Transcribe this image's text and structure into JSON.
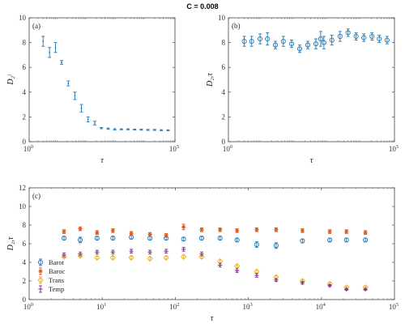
{
  "figure": {
    "title": "C = 0.008"
  },
  "chart_data": [
    {
      "id": "a",
      "type": "scatter",
      "panel_label": "(a)",
      "xlabel": "τ",
      "ylabel": "D₂ʲ",
      "xscale": "log",
      "xlim": [
        1,
        100000
      ],
      "ylim": [
        0,
        10
      ],
      "xticks": [
        {
          "v": 1,
          "label": "10",
          "exp": "0"
        },
        {
          "v": 100000,
          "label": "10",
          "exp": "5"
        }
      ],
      "yticks": [
        0,
        2,
        4,
        6,
        8,
        10
      ],
      "grid": false,
      "series": [
        {
          "color": "#1f77b4",
          "marker": "errorbar",
          "x": [
            3,
            5,
            8,
            13,
            22,
            37,
            62,
            105,
            178,
            300,
            510,
            860,
            1450,
            2450,
            4150,
            7000,
            11800,
            20000,
            34000,
            58000
          ],
          "y": [
            8.1,
            7.2,
            7.6,
            6.4,
            4.7,
            3.7,
            2.7,
            1.8,
            1.5,
            1.1,
            1.05,
            1.0,
            1.0,
            1.0,
            0.98,
            0.97,
            0.95,
            0.95,
            0.93,
            0.92
          ],
          "err": [
            0.4,
            0.4,
            0.4,
            0.15,
            0.2,
            0.3,
            0.3,
            0.2,
            0.15,
            0.05,
            0.05,
            0.05,
            0.04,
            0.04,
            0.04,
            0.04,
            0.04,
            0.04,
            0.04,
            0.04
          ]
        }
      ]
    },
    {
      "id": "b",
      "type": "scatter",
      "panel_label": "(b)",
      "xlabel": "τ",
      "ylabel": "D₂,τ",
      "xscale": "log",
      "xlim": [
        1,
        100000
      ],
      "ylim": [
        0,
        10
      ],
      "xticks": [
        {
          "v": 1,
          "label": "10",
          "exp": "0"
        },
        {
          "v": 100000,
          "label": "10",
          "exp": "5"
        }
      ],
      "yticks": [
        0,
        2,
        4,
        6,
        8,
        10
      ],
      "grid": false,
      "series": [
        {
          "color": "#1f77b4",
          "marker": "circle",
          "x": [
            3,
            5,
            9,
            15,
            26,
            45,
            80,
            140,
            245,
            430,
            600,
            750,
            1300,
            2300,
            4000,
            7000,
            12000,
            21000,
            35000,
            60000
          ],
          "y": [
            8.1,
            8.1,
            8.3,
            8.3,
            7.8,
            8.1,
            7.9,
            7.5,
            7.8,
            7.9,
            8.3,
            8.0,
            8.2,
            8.5,
            8.8,
            8.5,
            8.4,
            8.5,
            8.3,
            8.2
          ],
          "err": [
            0.4,
            0.4,
            0.4,
            0.5,
            0.3,
            0.4,
            0.3,
            0.3,
            0.3,
            0.4,
            0.6,
            0.5,
            0.4,
            0.4,
            0.3,
            0.3,
            0.3,
            0.3,
            0.3,
            0.3
          ]
        }
      ]
    },
    {
      "id": "c",
      "type": "scatter",
      "panel_label": "(c)",
      "xlabel": "τ",
      "ylabel": "D₂,τ",
      "xscale": "log",
      "xlim": [
        1,
        100000
      ],
      "ylim": [
        0,
        12
      ],
      "xticks": [
        {
          "v": 1,
          "label": "10",
          "exp": "0"
        },
        {
          "v": 10,
          "label": "10",
          "exp": "1"
        },
        {
          "v": 100,
          "label": "10",
          "exp": "2"
        },
        {
          "v": 1000,
          "label": "10",
          "exp": "3"
        },
        {
          "v": 10000,
          "label": "10",
          "exp": "4"
        },
        {
          "v": 100000,
          "label": "10",
          "exp": "5"
        }
      ],
      "yticks": [
        0,
        2,
        4,
        6,
        8,
        10,
        12
      ],
      "grid": false,
      "legend_position": "bottom-left",
      "x": [
        3,
        5,
        8.5,
        14,
        25,
        45,
        75,
        130,
        230,
        410,
        700,
        1300,
        2400,
        5500,
        13000,
        22000,
        40000
      ],
      "series": [
        {
          "name": "Barot",
          "color": "#1f77b4",
          "marker": "circle",
          "y": [
            6.6,
            6.4,
            6.6,
            6.6,
            6.7,
            6.6,
            6.6,
            6.5,
            6.6,
            6.6,
            6.4,
            5.9,
            5.8,
            6.3,
            6.4,
            6.4,
            6.4
          ],
          "err": [
            0.2,
            0.3,
            0.2,
            0.2,
            0.2,
            0.2,
            0.2,
            0.2,
            0.2,
            0.2,
            0.2,
            0.3,
            0.3,
            0.2,
            0.2,
            0.2,
            0.2
          ]
        },
        {
          "name": "Baroc",
          "color": "#d95319",
          "marker": "star",
          "y": [
            7.3,
            7.6,
            7.2,
            7.4,
            7.1,
            7.0,
            6.9,
            7.8,
            7.5,
            7.5,
            7.4,
            7.5,
            7.5,
            7.4,
            7.3,
            7.3,
            7.2
          ],
          "err": [
            0.2,
            0.2,
            0.2,
            0.2,
            0.2,
            0.2,
            0.2,
            0.3,
            0.2,
            0.2,
            0.2,
            0.2,
            0.2,
            0.2,
            0.2,
            0.2,
            0.2
          ]
        },
        {
          "name": "Trans",
          "color": "#edb120",
          "marker": "diamond",
          "y": [
            4.6,
            4.7,
            4.5,
            4.5,
            4.5,
            4.4,
            4.5,
            4.6,
            4.6,
            4.1,
            3.6,
            3.0,
            2.4,
            2.0,
            1.7,
            1.3,
            1.3
          ],
          "err": [
            0.15,
            0.15,
            0.15,
            0.15,
            0.15,
            0.15,
            0.15,
            0.15,
            0.15,
            0.15,
            0.15,
            0.15,
            0.15,
            0.15,
            0.1,
            0.1,
            0.1
          ]
        },
        {
          "name": "Temp",
          "color": "#7e2f8e",
          "marker": "plus",
          "y": [
            4.8,
            4.9,
            5.1,
            5.1,
            5.2,
            5.1,
            5.2,
            5.4,
            4.9,
            3.7,
            3.1,
            2.6,
            2.1,
            1.8,
            1.5,
            1.1,
            1.1
          ],
          "err": [
            0.2,
            0.2,
            0.2,
            0.2,
            0.2,
            0.2,
            0.2,
            0.2,
            0.2,
            0.2,
            0.2,
            0.2,
            0.15,
            0.15,
            0.1,
            0.1,
            0.1
          ]
        }
      ]
    }
  ]
}
